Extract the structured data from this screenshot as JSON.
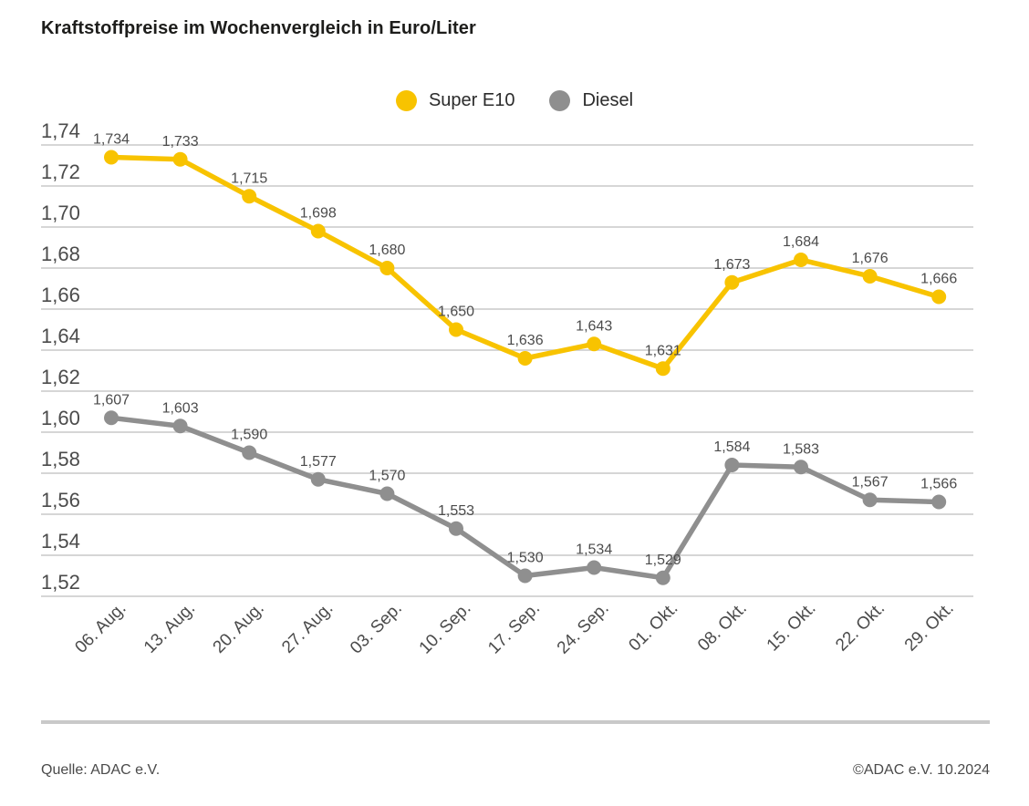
{
  "title": "Kraftstoffpreise im Wochenvergleich in Euro/Liter",
  "legend": {
    "items": [
      {
        "label": "Super E10",
        "dot_color": "#f8c300"
      },
      {
        "label": "Diesel",
        "dot_color": "#8f8f8f"
      }
    ]
  },
  "chart_data": {
    "type": "line",
    "title": "Kraftstoffpreise im Wochenvergleich in Euro/Liter",
    "categories": [
      "06. Aug.",
      "13. Aug.",
      "20. Aug.",
      "27. Aug.",
      "03. Sep.",
      "10. Sep.",
      "17. Sep.",
      "24. Sep.",
      "01. Okt.",
      "08. Okt.",
      "15. Okt.",
      "22. Okt.",
      "29. Okt."
    ],
    "series": [
      {
        "name": "Super E10",
        "color": "#f8c300",
        "values": [
          1.734,
          1.733,
          1.715,
          1.698,
          1.68,
          1.65,
          1.636,
          1.643,
          1.631,
          1.673,
          1.684,
          1.676,
          1.666
        ]
      },
      {
        "name": "Diesel",
        "color": "#8f8f8f",
        "values": [
          1.607,
          1.603,
          1.59,
          1.577,
          1.57,
          1.553,
          1.53,
          1.534,
          1.529,
          1.584,
          1.583,
          1.567,
          1.566
        ]
      }
    ],
    "xlabel": "",
    "ylabel": "Euro/Liter",
    "ylim": [
      1.52,
      1.74
    ],
    "ytick_step": 0.02,
    "grid": "horizontal",
    "legend_position": "top-center",
    "value_format": "decimal-comma",
    "point_label_decimals": 3,
    "ytick_decimals": 2
  },
  "footer": {
    "source": "Quelle: ADAC e.V.",
    "copyright": "©ADAC e.V. 10.2024"
  },
  "colors": {
    "super_e10": "#f8c300",
    "diesel": "#8f8f8f",
    "gridline": "#c8c8c8",
    "axis_text": "#4b4b4b",
    "point_label_text": "#4b4b4b",
    "title_text": "#1d1d1b",
    "divider": "#c9c9c9"
  }
}
